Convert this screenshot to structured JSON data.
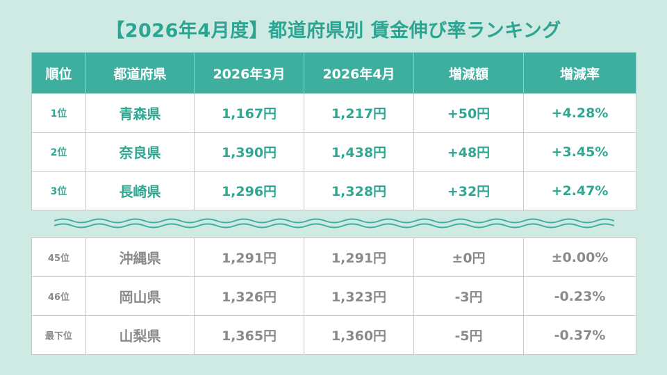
{
  "title": "【2026年4月度】都道府県別 賃金伸び率ランキング",
  "headers": [
    "順位",
    "都道府県",
    "2026年3月",
    "2026年4月",
    "増減額",
    "増減率"
  ],
  "top_rows": [
    {
      "rank": "1位",
      "pref": "青森県",
      "mar": "1,167円",
      "apr": "1,217円",
      "diff": "+50円",
      "rate": "+4.28%"
    },
    {
      "rank": "2位",
      "pref": "奈良県",
      "mar": "1,390円",
      "apr": "1,438円",
      "diff": "+48円",
      "rate": "+3.45%"
    },
    {
      "rank": "3位",
      "pref": "長崎県",
      "mar": "1,296円",
      "apr": "1,328円",
      "diff": "+32円",
      "rate": "+2.47%"
    }
  ],
  "bottom_rows": [
    {
      "rank": "45位",
      "pref": "沖縄県",
      "mar": "1,291円",
      "apr": "1,291円",
      "diff": "±0円",
      "rate": "±0.00%"
    },
    {
      "rank": "46位",
      "pref": "岡山県",
      "mar": "1,326円",
      "apr": "1,323円",
      "diff": "-3円",
      "rate": "-0.23%"
    },
    {
      "rank": "最下位",
      "pref": "山梨県",
      "mar": "1,365円",
      "apr": "1,360円",
      "diff": "-5円",
      "rate": "-0.37%"
    }
  ],
  "colors": {
    "accent": "#3eaf9e",
    "title_text": "#2ba592",
    "top_text": "#2fa792",
    "bottom_text": "#8a8a8a",
    "background": "#cfe9e3"
  }
}
